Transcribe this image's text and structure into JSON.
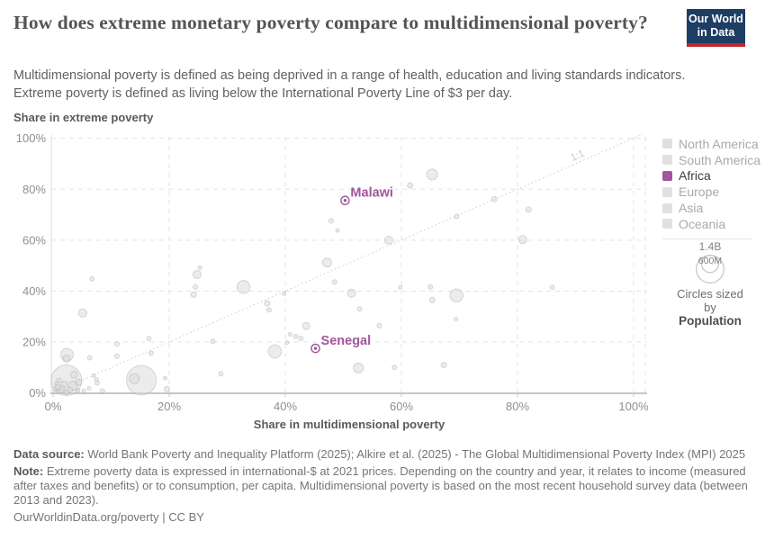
{
  "header": {
    "title": "How does extreme monetary poverty compare to multidimensional poverty?",
    "subtitle_line1": "Multidimensional poverty is defined as being deprived in a range of health, education and living standards indicators.",
    "subtitle_line2": "Extreme poverty is defined as living below the International Poverty Line of $3 per day.",
    "logo": {
      "line1": "Our World",
      "line2": "in Data",
      "bg_color": "#1d3d63",
      "bar_color": "#c0272d"
    }
  },
  "chart_data": {
    "type": "scatter",
    "xlabel": "Share in multidimensional poverty",
    "ylabel": "Share in extreme poverty",
    "xlim": [
      0,
      100
    ],
    "ylim": [
      0,
      100
    ],
    "grid": true,
    "ticks": {
      "values": [
        0,
        20,
        40,
        60,
        80,
        100
      ],
      "labels": [
        "0%",
        "20%",
        "40%",
        "60%",
        "80%",
        "100%"
      ]
    },
    "reference_line": {
      "label": "1:1",
      "from_xy": [
        0,
        0
      ],
      "to_xy": [
        100,
        100
      ]
    },
    "colors": {
      "bubble_fill": "#d9d9d9",
      "bubble_stroke": "#ababab",
      "highlight": "#a2559c",
      "grid": "#e3e3e3",
      "axis": "#c6c6c6",
      "tick_text": "#8f8f8f",
      "ref_line": "#cccccc"
    },
    "highlighted_points": [
      {
        "name": "Malawi",
        "x": 50.3,
        "y": 75.6
      },
      {
        "name": "Senegal",
        "x": 45.2,
        "y": 17.5
      }
    ],
    "points_note": "gray bubbles sized by population; format [x_percent, y_percent, radius_px]",
    "points": [
      [
        2.3,
        5.0,
        17
      ],
      [
        15.2,
        5.0,
        16.5
      ],
      [
        14.0,
        5.6,
        5.5
      ],
      [
        2.4,
        15.0,
        7
      ],
      [
        2.3,
        13.5,
        4
      ],
      [
        5.1,
        31.4,
        4.7
      ],
      [
        38.2,
        16.3,
        7.3
      ],
      [
        32.8,
        41.6,
        7.3
      ],
      [
        69.5,
        38.3,
        7.3
      ],
      [
        65.3,
        85.8,
        6
      ],
      [
        52.6,
        9.8,
        5.5
      ],
      [
        47.2,
        51.2,
        5
      ],
      [
        24.8,
        46.5,
        4.5
      ],
      [
        51.4,
        39.2,
        4.5
      ],
      [
        57.8,
        60.0,
        4.5
      ],
      [
        80.9,
        60.2,
        4.5
      ],
      [
        43.6,
        26.3,
        4
      ],
      [
        3.4,
        2.8,
        5
      ],
      [
        1.5,
        1.5,
        4
      ],
      [
        3.6,
        7.2,
        4
      ],
      [
        4.4,
        4.2,
        3.5
      ],
      [
        1.9,
        3.4,
        3.5
      ],
      [
        0.8,
        2.3,
        3
      ],
      [
        2.9,
        1.2,
        3
      ],
      [
        0.3,
        1.5,
        2.5
      ],
      [
        1.4,
        0.8,
        2.5
      ],
      [
        1.0,
        5.0,
        2.5
      ],
      [
        0.4,
        0.4,
        2
      ],
      [
        2.3,
        0.3,
        2.5
      ],
      [
        5.3,
        0.8,
        2
      ],
      [
        4.3,
        1.0,
        2
      ],
      [
        0.6,
        3.6,
        2
      ],
      [
        6.2,
        1.8,
        2
      ],
      [
        7.6,
        3.9,
        2.5
      ],
      [
        8.5,
        0.8,
        2.5
      ],
      [
        7.5,
        5.3,
        2
      ],
      [
        7.0,
        6.8,
        2
      ],
      [
        6.3,
        13.8,
        2.5
      ],
      [
        6.7,
        44.8,
        2.5
      ],
      [
        11.0,
        19.2,
        2.5
      ],
      [
        11.0,
        14.4,
        2.5
      ],
      [
        16.5,
        21.4,
        2.5
      ],
      [
        16.9,
        15.6,
        2.5
      ],
      [
        19.3,
        5.8,
        2
      ],
      [
        19.6,
        1.5,
        3
      ],
      [
        27.5,
        20.3,
        2.5
      ],
      [
        28.9,
        7.5,
        2.5
      ],
      [
        25.3,
        49.2,
        2
      ],
      [
        24.5,
        41.6,
        2.5
      ],
      [
        24.2,
        38.6,
        3
      ],
      [
        36.9,
        35.2,
        3
      ],
      [
        37.2,
        32.6,
        2.5
      ],
      [
        39.8,
        39.0,
        2
      ],
      [
        40.8,
        23.0,
        2
      ],
      [
        41.8,
        22.2,
        2.5
      ],
      [
        42.7,
        21.4,
        2.5
      ],
      [
        40.3,
        19.8,
        2
      ],
      [
        48.5,
        43.6,
        2.5
      ],
      [
        47.9,
        67.6,
        2.5
      ],
      [
        49.0,
        63.8,
        2
      ],
      [
        52.8,
        33.0,
        2.5
      ],
      [
        56.2,
        26.4,
        2.5
      ],
      [
        58.8,
        10.0,
        2.5
      ],
      [
        59.8,
        41.5,
        2
      ],
      [
        61.5,
        81.5,
        3
      ],
      [
        65.0,
        41.6,
        2.5
      ],
      [
        65.3,
        36.5,
        3
      ],
      [
        67.3,
        11.0,
        3
      ],
      [
        69.4,
        29.0,
        2
      ],
      [
        69.5,
        69.3,
        2.5
      ],
      [
        76.0,
        76.1,
        3
      ],
      [
        81.9,
        72.0,
        3
      ],
      [
        86.0,
        41.5,
        2.5
      ]
    ]
  },
  "legend": {
    "items": [
      {
        "label": "North America",
        "color": "#e0e0e0",
        "active": false
      },
      {
        "label": "South America",
        "color": "#e0e0e0",
        "active": false
      },
      {
        "label": "Africa",
        "color": "#a2559c",
        "active": true
      },
      {
        "label": "Europe",
        "color": "#e0e0e0",
        "active": false
      },
      {
        "label": "Asia",
        "color": "#e0e0e0",
        "active": false
      },
      {
        "label": "Oceania",
        "color": "#e0e0e0",
        "active": false
      }
    ],
    "size_legend": {
      "outer_label": "1.4B",
      "inner_label": "600M",
      "caption_line1": "Circles sized by",
      "caption_line2": "Population"
    }
  },
  "footer": {
    "data_source_label": "Data source:",
    "data_source_text": " World Bank Poverty and Inequality Platform (2025); Alkire et al. (2025) - The Global Multidimensional Poverty Index (MPI) 2025",
    "note_label": "Note:",
    "note_text": " Extreme poverty data is expressed in international-$ at 2021 prices. Depending on the country and year, it relates to income (measured after taxes and benefits) or to consumption, per capita. Multidimensional poverty is based on the most recent household survey data (between 2013 and 2023).",
    "cc_line": "OurWorldinData.org/poverty | CC BY"
  }
}
